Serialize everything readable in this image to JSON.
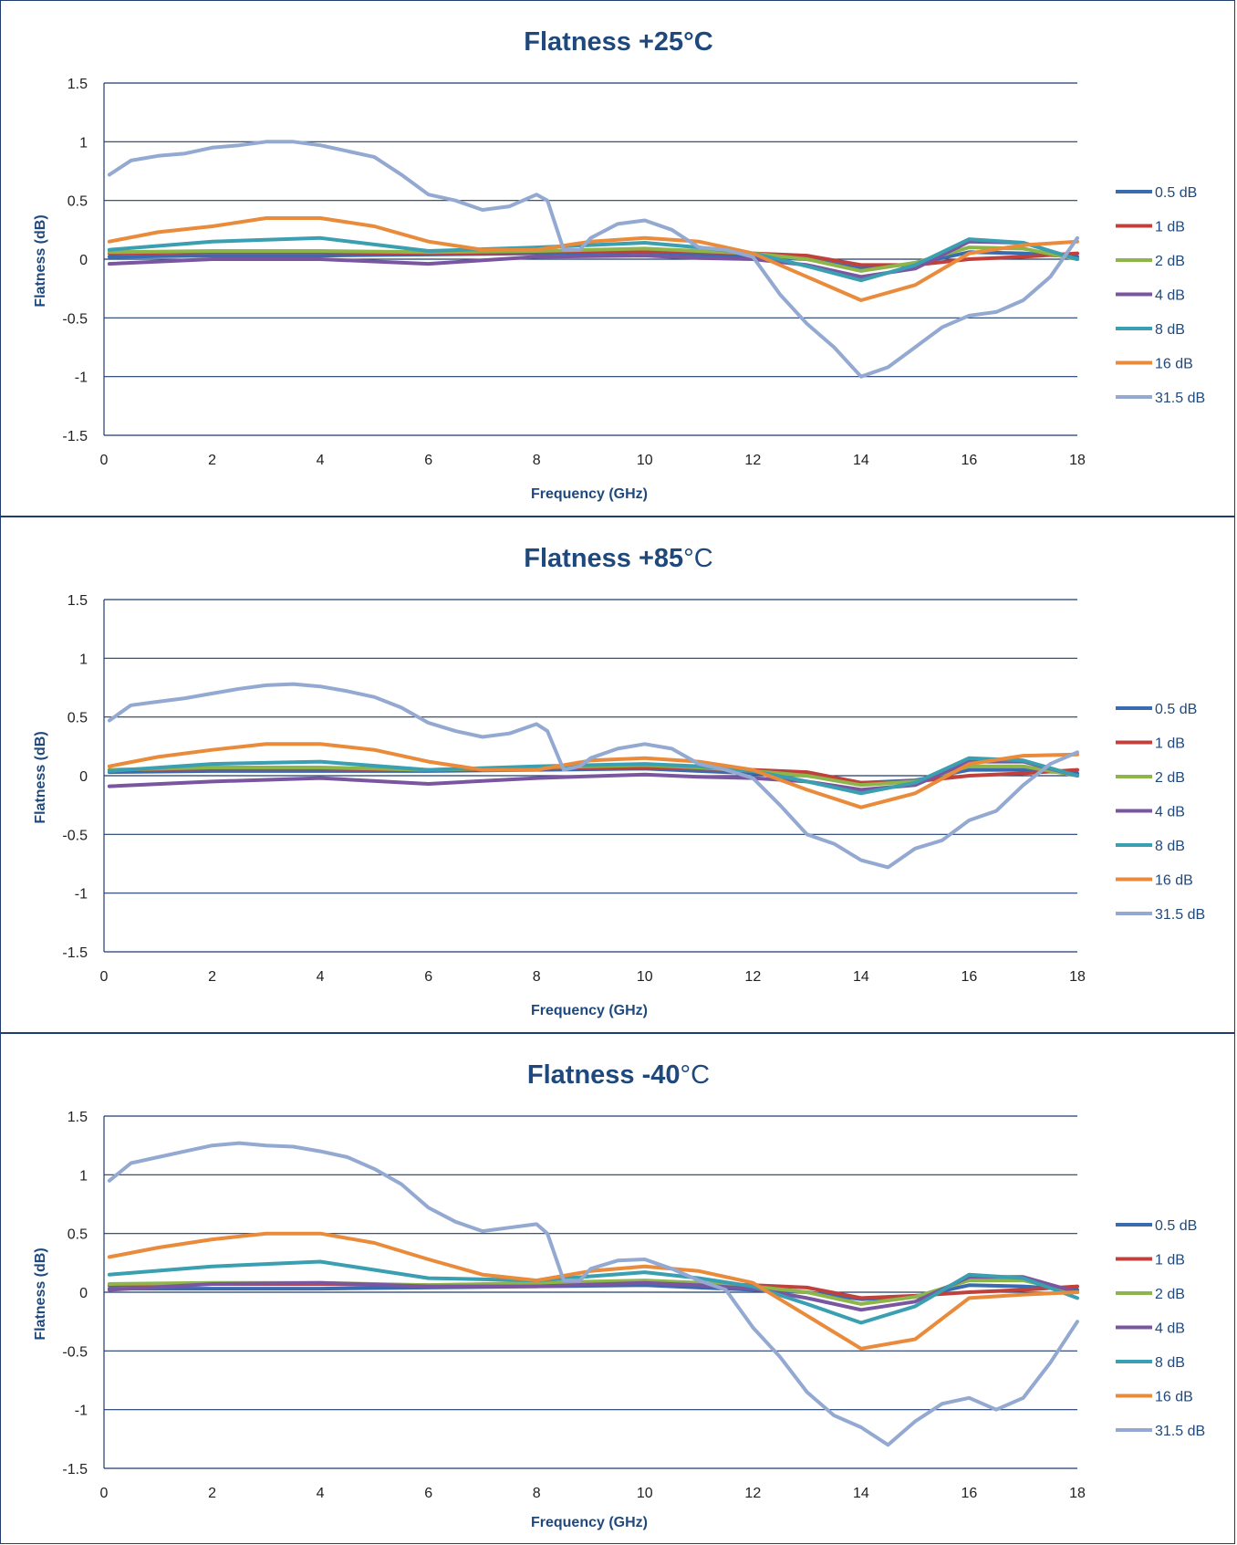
{
  "chart_data": [
    {
      "type": "line",
      "title": "Flatness +25",
      "title_unit": "°C",
      "title_unit_bold": true,
      "xlabel": "Frequency (GHz)",
      "ylabel": "Flatness (dB)",
      "xlim": [
        0,
        18
      ],
      "ylim": [
        -1.5,
        1.5
      ],
      "xticks": [
        "0",
        "2",
        "4",
        "6",
        "8",
        "10",
        "12",
        "14",
        "16",
        "18"
      ],
      "yticks": [
        "1.5",
        "1",
        "0.5",
        "0",
        "-0.5",
        "-1",
        "-1.5"
      ],
      "grid": "horizontal",
      "legend": "right",
      "series": [
        {
          "name": "0.5 dB",
          "color": "#3a6bb0",
          "x": [
            0.1,
            2,
            4,
            6,
            8,
            10,
            11,
            12,
            13,
            14,
            15,
            16,
            17,
            18
          ],
          "y": [
            0.02,
            0.03,
            0.03,
            0.04,
            0.05,
            0.06,
            0.04,
            0.02,
            0.0,
            -0.08,
            -0.04,
            0.06,
            0.05,
            0.02
          ]
        },
        {
          "name": "1 dB",
          "color": "#c0403c",
          "x": [
            0.1,
            2,
            4,
            6,
            8,
            10,
            11,
            12,
            13,
            14,
            15,
            16,
            17,
            18
          ],
          "y": [
            0.05,
            0.06,
            0.06,
            0.05,
            0.06,
            0.07,
            0.06,
            0.05,
            0.03,
            -0.05,
            -0.05,
            0.0,
            0.02,
            0.05
          ]
        },
        {
          "name": "2 dB",
          "color": "#8db54a",
          "x": [
            0.1,
            2,
            4,
            6,
            8,
            10,
            11,
            12,
            13,
            14,
            15,
            16,
            17,
            18
          ],
          "y": [
            0.06,
            0.07,
            0.07,
            0.06,
            0.07,
            0.09,
            0.07,
            0.05,
            0.0,
            -0.1,
            -0.03,
            0.1,
            0.09,
            0.0
          ]
        },
        {
          "name": "4 dB",
          "color": "#7a56a0",
          "x": [
            0.1,
            2,
            4,
            6,
            8,
            10,
            11,
            12,
            13,
            14,
            15,
            16,
            17,
            18
          ],
          "y": [
            -0.04,
            0.0,
            0.0,
            -0.04,
            0.02,
            0.03,
            0.01,
            0.0,
            -0.05,
            -0.15,
            -0.08,
            0.15,
            0.14,
            0.0
          ]
        },
        {
          "name": "8 dB",
          "color": "#3a9fb0",
          "x": [
            0.1,
            2,
            4,
            6,
            8,
            10,
            11,
            12,
            13,
            14,
            15,
            16,
            17,
            18
          ],
          "y": [
            0.08,
            0.15,
            0.18,
            0.07,
            0.1,
            0.14,
            0.1,
            0.05,
            -0.06,
            -0.18,
            -0.05,
            0.17,
            0.14,
            0.0
          ]
        },
        {
          "name": "16 dB",
          "color": "#e98b3a",
          "x": [
            0.1,
            1,
            2,
            3,
            4,
            5,
            6,
            7,
            8,
            9,
            10,
            11,
            12,
            13,
            14,
            15,
            16,
            17,
            18
          ],
          "y": [
            0.15,
            0.23,
            0.28,
            0.35,
            0.35,
            0.28,
            0.15,
            0.08,
            0.08,
            0.15,
            0.18,
            0.15,
            0.05,
            -0.15,
            -0.35,
            -0.22,
            0.05,
            0.12,
            0.15
          ]
        },
        {
          "name": "31.5 dB",
          "color": "#93a9d1",
          "x": [
            0.1,
            0.5,
            1,
            1.5,
            2,
            2.5,
            3,
            3.5,
            4,
            4.5,
            5,
            5.5,
            6,
            6.5,
            7,
            7.5,
            8,
            8.2,
            8.5,
            8.8,
            9,
            9.5,
            10,
            10.5,
            11,
            11.5,
            12,
            12.5,
            13,
            13.5,
            14,
            14.5,
            15,
            15.5,
            16,
            16.5,
            17,
            17.5,
            18
          ],
          "y": [
            0.72,
            0.84,
            0.88,
            0.9,
            0.95,
            0.97,
            1.0,
            1.0,
            0.97,
            0.92,
            0.87,
            0.72,
            0.55,
            0.5,
            0.42,
            0.45,
            0.55,
            0.5,
            0.08,
            0.08,
            0.18,
            0.3,
            0.33,
            0.25,
            0.1,
            0.08,
            0.02,
            -0.3,
            -0.55,
            -0.75,
            -1.0,
            -0.92,
            -0.75,
            -0.58,
            -0.48,
            -0.45,
            -0.35,
            -0.15,
            0.18
          ]
        }
      ]
    },
    {
      "type": "line",
      "title": "Flatness +85",
      "title_unit": "°C",
      "title_unit_bold": false,
      "xlabel": "Frequency (GHz)",
      "ylabel": "Flatness (dB)",
      "xlim": [
        0,
        18
      ],
      "ylim": [
        -1.5,
        1.5
      ],
      "xticks": [
        "0",
        "2",
        "4",
        "6",
        "8",
        "10",
        "12",
        "14",
        "16",
        "18"
      ],
      "yticks": [
        "1.5",
        "1",
        "0.5",
        "0",
        "-0.5",
        "-1",
        "-1.5"
      ],
      "grid": "horizontal",
      "legend": "right",
      "series": [
        {
          "name": "0.5 dB",
          "color": "#3a6bb0",
          "x": [
            0.1,
            2,
            4,
            6,
            8,
            10,
            11,
            12,
            13,
            14,
            15,
            16,
            17,
            18
          ],
          "y": [
            0.03,
            0.04,
            0.04,
            0.04,
            0.05,
            0.06,
            0.04,
            0.02,
            0.0,
            -0.06,
            -0.04,
            0.05,
            0.05,
            0.02
          ]
        },
        {
          "name": "1 dB",
          "color": "#c0403c",
          "x": [
            0.1,
            2,
            4,
            6,
            8,
            10,
            11,
            12,
            13,
            14,
            15,
            16,
            17,
            18
          ],
          "y": [
            0.05,
            0.06,
            0.06,
            0.05,
            0.06,
            0.07,
            0.06,
            0.05,
            0.03,
            -0.06,
            -0.05,
            0.0,
            0.02,
            0.05
          ]
        },
        {
          "name": "2 dB",
          "color": "#8db54a",
          "x": [
            0.1,
            2,
            4,
            6,
            8,
            10,
            11,
            12,
            13,
            14,
            15,
            16,
            17,
            18
          ],
          "y": [
            0.05,
            0.07,
            0.07,
            0.05,
            0.07,
            0.09,
            0.07,
            0.04,
            0.0,
            -0.08,
            -0.05,
            0.08,
            0.08,
            0.0
          ]
        },
        {
          "name": "4 dB",
          "color": "#7a56a0",
          "x": [
            0.1,
            2,
            4,
            6,
            8,
            10,
            11,
            12,
            13,
            14,
            15,
            16,
            17,
            18
          ],
          "y": [
            -0.09,
            -0.05,
            -0.02,
            -0.07,
            -0.02,
            0.01,
            -0.01,
            -0.02,
            -0.05,
            -0.12,
            -0.08,
            0.12,
            0.12,
            0.0
          ]
        },
        {
          "name": "8 dB",
          "color": "#3a9fb0",
          "x": [
            0.1,
            2,
            4,
            6,
            8,
            10,
            11,
            12,
            13,
            14,
            15,
            16,
            17,
            18
          ],
          "y": [
            0.04,
            0.1,
            0.12,
            0.05,
            0.08,
            0.1,
            0.08,
            0.04,
            -0.05,
            -0.15,
            -0.06,
            0.15,
            0.13,
            0.0
          ]
        },
        {
          "name": "16 dB",
          "color": "#e98b3a",
          "x": [
            0.1,
            1,
            2,
            3,
            4,
            5,
            6,
            7,
            8,
            9,
            10,
            11,
            12,
            13,
            14,
            15,
            16,
            17,
            18
          ],
          "y": [
            0.08,
            0.16,
            0.22,
            0.27,
            0.27,
            0.22,
            0.12,
            0.05,
            0.05,
            0.13,
            0.15,
            0.12,
            0.05,
            -0.12,
            -0.27,
            -0.15,
            0.1,
            0.17,
            0.18
          ]
        },
        {
          "name": "31.5 dB",
          "color": "#93a9d1",
          "x": [
            0.1,
            0.5,
            1,
            1.5,
            2,
            2.5,
            3,
            3.5,
            4,
            4.5,
            5,
            5.5,
            6,
            6.5,
            7,
            7.5,
            8,
            8.2,
            8.5,
            8.8,
            9,
            9.5,
            10,
            10.5,
            11,
            11.5,
            12,
            12.5,
            13,
            13.5,
            14,
            14.5,
            15,
            15.5,
            16,
            16.5,
            17,
            17.5,
            18
          ],
          "y": [
            0.47,
            0.6,
            0.63,
            0.66,
            0.7,
            0.74,
            0.77,
            0.78,
            0.76,
            0.72,
            0.67,
            0.58,
            0.45,
            0.38,
            0.33,
            0.36,
            0.44,
            0.38,
            0.05,
            0.08,
            0.15,
            0.23,
            0.27,
            0.23,
            0.1,
            0.05,
            -0.02,
            -0.25,
            -0.5,
            -0.58,
            -0.72,
            -0.78,
            -0.62,
            -0.55,
            -0.38,
            -0.3,
            -0.08,
            0.1,
            0.2
          ]
        }
      ]
    },
    {
      "type": "line",
      "title": "Flatness -40",
      "title_unit": "°C",
      "title_unit_bold": false,
      "xlabel": "Frequency (GHz)",
      "ylabel": "Flatness (dB)",
      "xlim": [
        0,
        18
      ],
      "ylim": [
        -1.5,
        1.5
      ],
      "xticks": [
        "0",
        "2",
        "4",
        "6",
        "8",
        "10",
        "12",
        "14",
        "16",
        "18"
      ],
      "yticks": [
        "1.5",
        "1",
        "0.5",
        "0",
        "-0.5",
        "-1",
        "-1.5"
      ],
      "grid": "horizontal",
      "legend": "right",
      "series": [
        {
          "name": "0.5 dB",
          "color": "#3a6bb0",
          "x": [
            0.1,
            2,
            4,
            6,
            8,
            10,
            11,
            12,
            13,
            14,
            15,
            16,
            17,
            18
          ],
          "y": [
            0.03,
            0.03,
            0.03,
            0.04,
            0.05,
            0.06,
            0.04,
            0.02,
            0.0,
            -0.06,
            -0.04,
            0.06,
            0.05,
            0.02
          ]
        },
        {
          "name": "1 dB",
          "color": "#c0403c",
          "x": [
            0.1,
            2,
            4,
            6,
            8,
            10,
            11,
            12,
            13,
            14,
            15,
            16,
            17,
            18
          ],
          "y": [
            0.06,
            0.07,
            0.07,
            0.06,
            0.07,
            0.08,
            0.07,
            0.06,
            0.04,
            -0.05,
            -0.03,
            0.0,
            0.02,
            0.05
          ]
        },
        {
          "name": "2 dB",
          "color": "#8db54a",
          "x": [
            0.1,
            2,
            4,
            6,
            8,
            10,
            11,
            12,
            13,
            14,
            15,
            16,
            17,
            18
          ],
          "y": [
            0.07,
            0.08,
            0.08,
            0.06,
            0.08,
            0.1,
            0.08,
            0.05,
            0.0,
            -0.1,
            -0.04,
            0.1,
            0.1,
            0.0
          ]
        },
        {
          "name": "4 dB",
          "color": "#7a56a0",
          "x": [
            0.1,
            2,
            4,
            6,
            8,
            10,
            11,
            12,
            13,
            14,
            15,
            16,
            17,
            18
          ],
          "y": [
            0.02,
            0.07,
            0.08,
            0.05,
            0.05,
            0.08,
            0.06,
            0.03,
            -0.05,
            -0.15,
            -0.08,
            0.13,
            0.13,
            0.0
          ]
        },
        {
          "name": "8 dB",
          "color": "#3a9fb0",
          "x": [
            0.1,
            2,
            4,
            6,
            8,
            10,
            11,
            12,
            13,
            14,
            15,
            16,
            17,
            18
          ],
          "y": [
            0.15,
            0.22,
            0.26,
            0.12,
            0.1,
            0.17,
            0.12,
            0.05,
            -0.1,
            -0.26,
            -0.12,
            0.15,
            0.12,
            -0.05
          ]
        },
        {
          "name": "16 dB",
          "color": "#e98b3a",
          "x": [
            0.1,
            1,
            2,
            3,
            4,
            5,
            6,
            7,
            8,
            9,
            10,
            11,
            12,
            13,
            14,
            15,
            16,
            17,
            18
          ],
          "y": [
            0.3,
            0.38,
            0.45,
            0.5,
            0.5,
            0.42,
            0.28,
            0.15,
            0.1,
            0.18,
            0.22,
            0.18,
            0.08,
            -0.2,
            -0.48,
            -0.4,
            -0.05,
            -0.02,
            0.0
          ]
        },
        {
          "name": "31.5 dB",
          "color": "#93a9d1",
          "x": [
            0.1,
            0.5,
            1,
            1.5,
            2,
            2.5,
            3,
            3.5,
            4,
            4.5,
            5,
            5.5,
            6,
            6.5,
            7,
            7.5,
            8,
            8.2,
            8.5,
            8.8,
            9,
            9.5,
            10,
            10.5,
            11,
            11.5,
            12,
            12.5,
            13,
            13.5,
            14,
            14.5,
            15,
            15.5,
            16,
            16.5,
            17,
            17.5,
            18
          ],
          "y": [
            0.95,
            1.1,
            1.15,
            1.2,
            1.25,
            1.27,
            1.25,
            1.24,
            1.2,
            1.15,
            1.05,
            0.92,
            0.72,
            0.6,
            0.52,
            0.55,
            0.58,
            0.5,
            0.1,
            0.1,
            0.2,
            0.27,
            0.28,
            0.2,
            0.1,
            0.02,
            -0.3,
            -0.55,
            -0.85,
            -1.05,
            -1.15,
            -1.3,
            -1.1,
            -0.95,
            -0.9,
            -1.0,
            -0.9,
            -0.6,
            -0.25
          ]
        }
      ]
    }
  ]
}
